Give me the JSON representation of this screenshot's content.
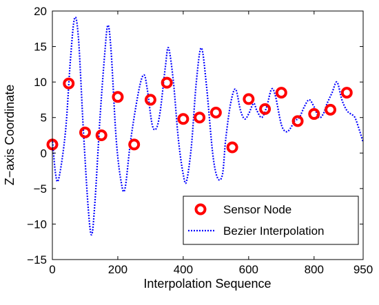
{
  "chart_data": {
    "type": "line",
    "xlabel": "Interpolation Sequence",
    "ylabel": "Z−axis Coordinate",
    "xlim": [
      0,
      950
    ],
    "ylim": [
      -15,
      20
    ],
    "x_ticks": [
      0,
      200,
      400,
      600,
      800,
      950
    ],
    "x_tick_labels": [
      "0",
      "200",
      "400",
      "600",
      "800",
      "950"
    ],
    "y_ticks": [
      -15,
      -10,
      -5,
      0,
      5,
      10,
      15,
      20
    ],
    "y_tick_labels": [
      "−15",
      "−10",
      "−5",
      "0",
      "5",
      "10",
      "15",
      "20"
    ],
    "grid": false,
    "legend_position": "bottom-right",
    "series": [
      {
        "name": "Sensor Node",
        "style": "markers",
        "color": "#ff0000",
        "marker": "circle",
        "x": [
          0,
          50,
          100,
          150,
          200,
          250,
          300,
          350,
          400,
          450,
          500,
          550,
          600,
          650,
          700,
          750,
          800,
          850,
          900
        ],
        "y": [
          1.2,
          9.8,
          2.9,
          2.5,
          7.9,
          1.2,
          7.5,
          9.9,
          4.8,
          5.0,
          5.7,
          0.8,
          7.6,
          6.2,
          8.5,
          4.5,
          5.5,
          6.1,
          8.5
        ]
      },
      {
        "name": "Bezier Interpolation",
        "style": "dotted-line",
        "color": "#0000ff",
        "x": [
          0,
          10,
          20,
          40,
          55,
          68,
          80,
          95,
          110,
          120,
          130,
          145,
          160,
          170,
          180,
          195,
          210,
          222,
          240,
          265,
          280,
          290,
          305,
          318,
          330,
          345,
          355,
          370,
          385,
          400,
          410,
          425,
          440,
          455,
          470,
          490,
          505,
          520,
          530,
          545,
          560,
          575,
          588,
          600,
          615,
          625,
          640,
          655,
          670,
          682,
          700,
          715,
          728,
          740,
          755,
          770,
          785,
          800,
          815,
          828,
          840,
          855,
          870,
          885,
          900,
          912,
          925,
          940,
          950
        ],
        "y": [
          2.0,
          -3.0,
          -3.5,
          3.0,
          13.0,
          19.0,
          16.0,
          3.0,
          -8.0,
          -11.5,
          -7.0,
          4.5,
          14.0,
          18.0,
          14.0,
          2.0,
          -4.0,
          -5.0,
          2.0,
          9.0,
          11.0,
          9.0,
          4.0,
          3.5,
          6.0,
          12.0,
          14.8,
          10.0,
          2.0,
          -3.0,
          -4.0,
          1.0,
          10.0,
          14.8,
          10.0,
          0.0,
          -3.5,
          -3.0,
          2.0,
          7.0,
          9.0,
          6.0,
          4.8,
          5.5,
          7.0,
          6.0,
          5.0,
          6.5,
          9.0,
          8.0,
          4.0,
          3.0,
          3.5,
          4.5,
          5.0,
          6.5,
          7.5,
          6.5,
          5.0,
          5.5,
          7.0,
          8.5,
          10.0,
          7.5,
          6.0,
          5.5,
          5.0,
          3.0,
          1.5
        ]
      }
    ]
  }
}
